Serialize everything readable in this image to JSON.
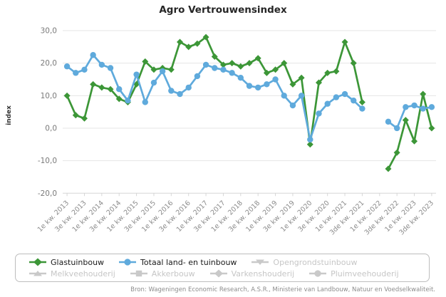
{
  "chart_data": {
    "type": "line",
    "title": "Agro Vertrouwensindex",
    "ylabel": "index",
    "source": "Bron: Wageningen Economic Research, A.S.R., Ministerie van Landbouw, Natuur en Voedselkwaliteit.",
    "ylim": [
      -20,
      30
    ],
    "grid": true,
    "n_points": 43,
    "points_per_label": 2,
    "x_tick_labels": [
      "1e kw. 2013",
      "3e kw. 2013",
      "1e kw. 2014",
      "3e kw. 2014",
      "1e kw. 2015",
      "3e kw. 2015",
      "1e kw. 2016",
      "3e kw. 2016",
      "1e kw. 2017",
      "3e kw. 2017",
      "1e kw. 2018",
      "3e kw. 2018",
      "1e kw. 2019",
      "3e kw. 2019",
      "1e kw. 2020",
      "3e kw. 2020",
      "1e kw. 2021",
      "3de kw. 2021",
      "1e kw. 2022",
      "3de kw. 2022",
      "1e kw. 2023",
      "3de kw. 2023"
    ],
    "yticks": [
      {
        "v": 30,
        "label": "30,0"
      },
      {
        "v": 20,
        "label": "20,0"
      },
      {
        "v": 10,
        "label": "10,0"
      },
      {
        "v": 0,
        "label": "0,0"
      },
      {
        "v": -10,
        "label": "-10,0"
      },
      {
        "v": -20,
        "label": "-20,0"
      }
    ],
    "series": [
      {
        "name": "Glastuinbouw",
        "color": "#3c9637",
        "marker": "diamond",
        "values": [
          10,
          4,
          3,
          13.5,
          12.5,
          12,
          9,
          8,
          13.5,
          20.5,
          18,
          18.5,
          18,
          26.5,
          25,
          26,
          28,
          22,
          19.5,
          20,
          19,
          20,
          21.5,
          17,
          18,
          20,
          13.5,
          15.5,
          -5,
          14,
          17,
          17.5,
          26.5,
          20,
          8,
          null,
          null,
          -12.5,
          -7.5,
          2.5,
          -4,
          10.5,
          0
        ]
      },
      {
        "name": "Totaal land- en tuinbouw",
        "color": "#5faadc",
        "marker": "circle",
        "values": [
          19,
          17,
          18,
          22.5,
          19.5,
          18.5,
          12,
          8.5,
          16.5,
          8,
          14,
          17.5,
          11.5,
          10.5,
          12.5,
          16,
          19.5,
          18.5,
          18,
          17,
          15.5,
          13,
          12.5,
          13.5,
          15,
          10,
          7,
          10,
          -3.5,
          4.5,
          7.5,
          9.5,
          10.5,
          8.5,
          6,
          null,
          null,
          2,
          0,
          6.5,
          7,
          6,
          6.5
        ]
      }
    ],
    "legend": [
      {
        "label": "Glastuinbouw",
        "marker": "diamond",
        "color": "#3c9637",
        "enabled": true
      },
      {
        "label": "Totaal land- en tuinbouw",
        "marker": "circle",
        "color": "#5faadc",
        "enabled": true
      },
      {
        "label": "Opengrondstuinbouw",
        "marker": "triangle-down",
        "color": "#c9c9c9",
        "enabled": false
      },
      {
        "label": "Melkveehouderij",
        "marker": "triangle-up",
        "color": "#c9c9c9",
        "enabled": false
      },
      {
        "label": "Akkerbouw",
        "marker": "square",
        "color": "#c9c9c9",
        "enabled": false
      },
      {
        "label": "Varkenshouderij",
        "marker": "diamond",
        "color": "#c9c9c9",
        "enabled": false
      },
      {
        "label": "Pluimveehouderij",
        "marker": "circle",
        "color": "#c9c9c9",
        "enabled": false
      }
    ]
  }
}
